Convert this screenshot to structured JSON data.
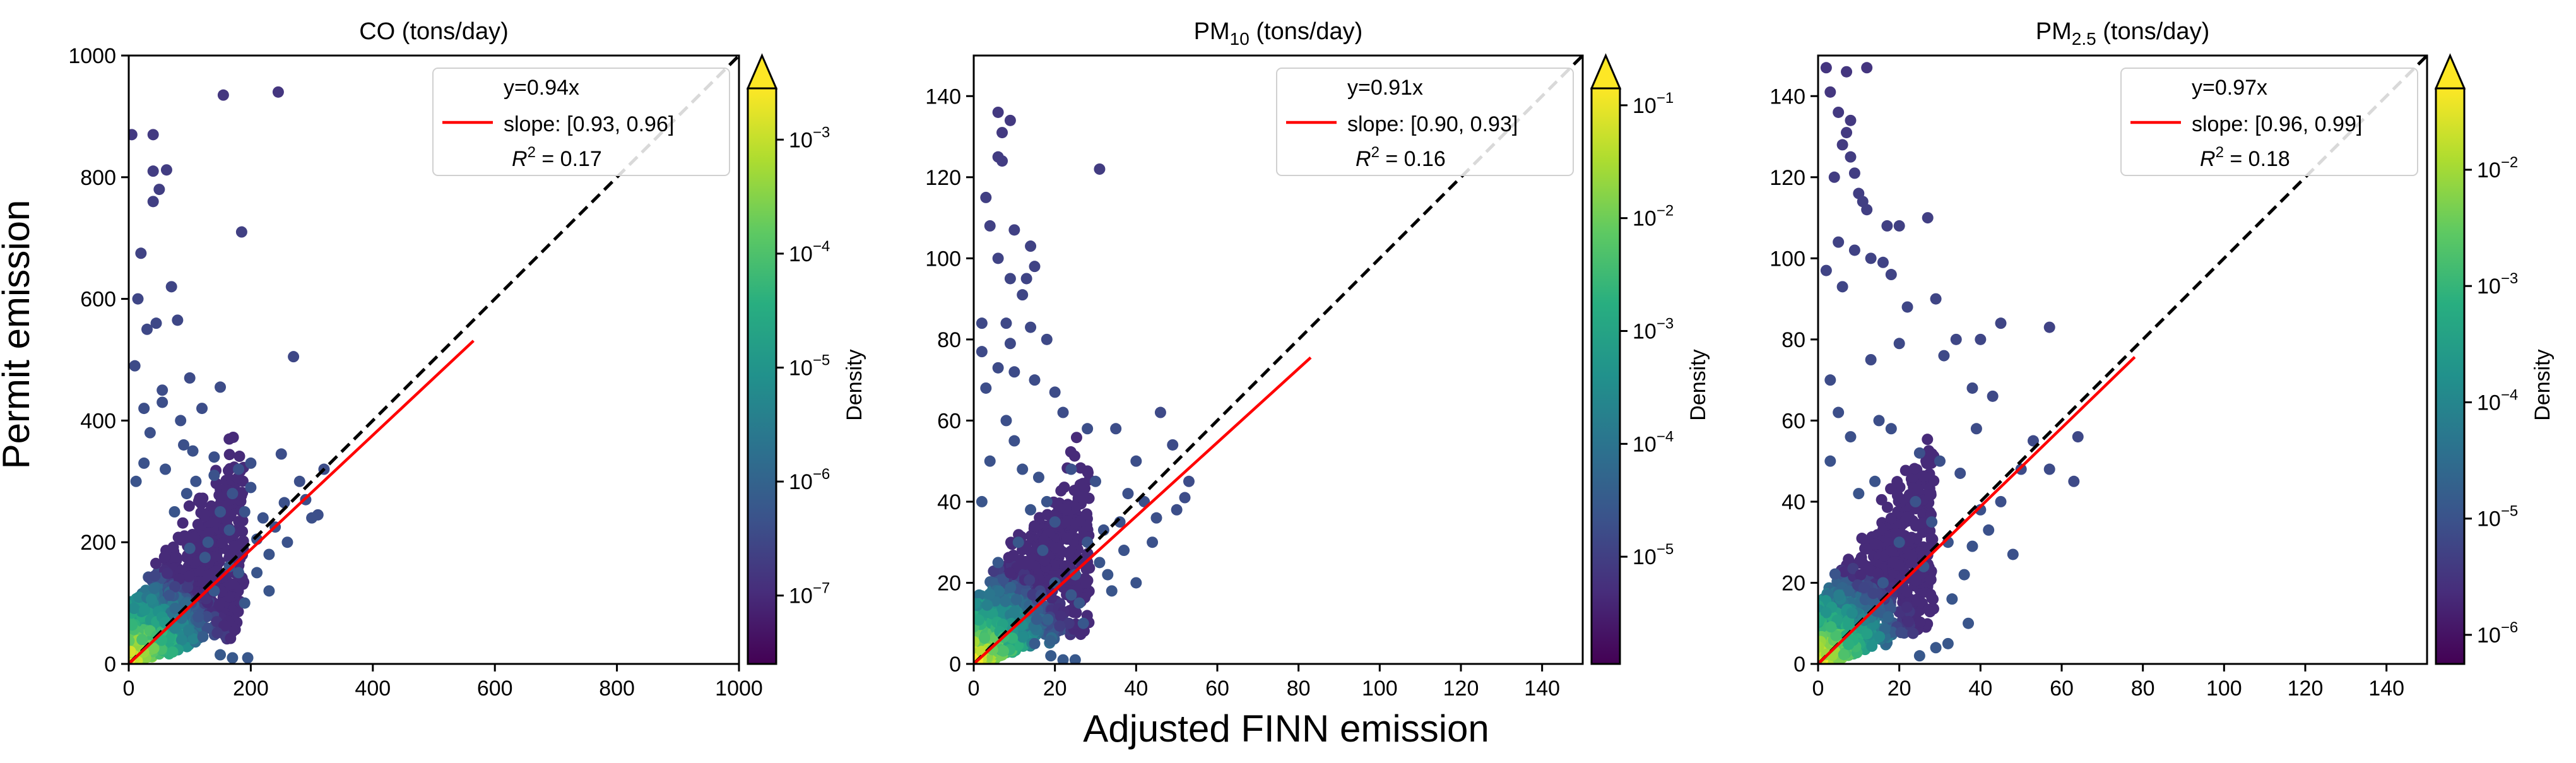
{
  "figure": {
    "ylabel": "Permit emission",
    "xlabel": "Adjusted FINN emission",
    "colorbar_label": "Density"
  },
  "chart_data": [
    {
      "type": "scatter",
      "title_main": "CO",
      "title_sub": "",
      "title_unit": " (tons/day)",
      "xlim": [
        0,
        1000
      ],
      "ylim": [
        0,
        1000
      ],
      "xticks": [
        "0",
        "200",
        "400",
        "600",
        "800",
        "1000"
      ],
      "yticks": [
        "0",
        "200",
        "400",
        "600",
        "800",
        "1000"
      ],
      "identity_line": "y=x",
      "fit": {
        "slope": 0.94,
        "x_end": 565,
        "label": "y=0.94x",
        "ci": "slope: [0.93, 0.96]",
        "r2": "0.17"
      },
      "colorbar": {
        "label": "Density",
        "exp_min": -7.6,
        "exp_max": -2.55,
        "tick_exps": [
          -7,
          -6,
          -5,
          -4,
          -3
        ]
      },
      "points": [
        [
          5,
          870
        ],
        [
          40,
          870
        ],
        [
          40,
          810
        ],
        [
          62,
          812
        ],
        [
          50,
          780
        ],
        [
          40,
          760
        ],
        [
          155,
          935
        ],
        [
          245,
          940
        ],
        [
          185,
          710
        ],
        [
          270,
          505
        ],
        [
          20,
          675
        ],
        [
          15,
          600
        ],
        [
          30,
          550
        ],
        [
          45,
          560
        ],
        [
          80,
          565
        ],
        [
          70,
          620
        ],
        [
          100,
          470
        ],
        [
          150,
          455
        ],
        [
          10,
          490
        ],
        [
          55,
          430
        ],
        [
          120,
          420
        ],
        [
          35,
          380
        ],
        [
          90,
          360
        ],
        [
          140,
          340
        ],
        [
          200,
          330
        ],
        [
          250,
          345
        ],
        [
          320,
          320
        ],
        [
          310,
          245
        ],
        [
          280,
          300
        ],
        [
          190,
          250
        ],
        [
          220,
          240
        ],
        [
          170,
          280
        ],
        [
          60,
          320
        ],
        [
          25,
          330
        ],
        [
          110,
          300
        ],
        [
          95,
          280
        ],
        [
          150,
          250
        ],
        [
          230,
          180
        ],
        [
          210,
          150
        ],
        [
          180,
          150
        ],
        [
          190,
          100
        ],
        [
          140,
          120
        ],
        [
          165,
          220
        ],
        [
          255,
          265
        ],
        [
          300,
          240
        ],
        [
          170,
          10
        ],
        [
          195,
          10
        ],
        [
          150,
          15
        ],
        [
          12,
          300
        ],
        [
          75,
          250
        ],
        [
          130,
          200
        ],
        [
          210,
          205
        ],
        [
          240,
          225
        ],
        [
          165,
          160
        ],
        [
          125,
          175
        ],
        [
          100,
          190
        ],
        [
          230,
          120
        ],
        [
          260,
          200
        ],
        [
          290,
          270
        ],
        [
          200,
          290
        ],
        [
          140,
          310
        ],
        [
          180,
          320
        ],
        [
          105,
          350
        ],
        [
          85,
          400
        ],
        [
          55,
          450
        ],
        [
          25,
          420
        ]
      ]
    },
    {
      "type": "scatter",
      "title_main": "PM",
      "title_sub": "10",
      "title_unit": " (tons/day)",
      "xlim": [
        0,
        150
      ],
      "ylim": [
        0,
        150
      ],
      "xticks": [
        "0",
        "20",
        "40",
        "60",
        "80",
        "100",
        "120",
        "140"
      ],
      "yticks": [
        "0",
        "20",
        "40",
        "60",
        "80",
        "100",
        "120",
        "140"
      ],
      "identity_line": "y=x",
      "fit": {
        "slope": 0.91,
        "x_end": 83,
        "label": "y=0.91x",
        "ci": "slope: [0.90, 0.93]",
        "r2": "0.16"
      },
      "colorbar": {
        "label": "Density",
        "exp_min": -5.95,
        "exp_max": -0.85,
        "tick_exps": [
          -5,
          -4,
          -3,
          -2,
          -1
        ]
      },
      "points": [
        [
          6,
          136
        ],
        [
          9,
          134
        ],
        [
          7,
          131
        ],
        [
          6,
          125
        ],
        [
          7,
          124
        ],
        [
          31,
          122
        ],
        [
          3,
          115
        ],
        [
          4,
          108
        ],
        [
          10,
          107
        ],
        [
          14,
          103
        ],
        [
          6,
          100
        ],
        [
          15,
          98
        ],
        [
          9,
          95
        ],
        [
          13,
          95
        ],
        [
          12,
          91
        ],
        [
          2,
          84
        ],
        [
          8,
          84
        ],
        [
          14,
          83
        ],
        [
          9,
          79
        ],
        [
          2,
          77
        ],
        [
          18,
          80
        ],
        [
          6,
          73
        ],
        [
          10,
          72
        ],
        [
          15,
          70
        ],
        [
          3,
          68
        ],
        [
          20,
          67
        ],
        [
          22,
          62
        ],
        [
          28,
          58
        ],
        [
          35,
          58
        ],
        [
          46,
          62
        ],
        [
          49,
          54
        ],
        [
          53,
          45
        ],
        [
          52,
          41
        ],
        [
          50,
          38
        ],
        [
          38,
          42
        ],
        [
          42,
          40
        ],
        [
          45,
          36
        ],
        [
          36,
          35
        ],
        [
          32,
          33
        ],
        [
          28,
          30
        ],
        [
          31,
          25
        ],
        [
          33,
          22
        ],
        [
          25,
          22
        ],
        [
          20,
          20
        ],
        [
          24,
          17
        ],
        [
          26,
          15
        ],
        [
          22,
          1
        ],
        [
          25,
          1
        ],
        [
          19,
          2
        ],
        [
          15,
          5
        ],
        [
          8,
          60
        ],
        [
          10,
          55
        ],
        [
          12,
          48
        ],
        [
          16,
          46
        ],
        [
          18,
          40
        ],
        [
          24,
          48
        ],
        [
          30,
          45
        ],
        [
          40,
          50
        ],
        [
          44,
          30
        ],
        [
          37,
          28
        ],
        [
          34,
          18
        ],
        [
          27,
          10
        ],
        [
          40,
          20
        ],
        [
          20,
          35
        ],
        [
          14,
          38
        ],
        [
          4,
          50
        ],
        [
          2,
          40
        ],
        [
          11,
          30
        ],
        [
          17,
          28
        ],
        [
          6,
          25
        ]
      ]
    },
    {
      "type": "scatter",
      "title_main": "PM",
      "title_sub": "2.5",
      "title_unit": " (tons/day)",
      "xlim": [
        0,
        150
      ],
      "ylim": [
        0,
        150
      ],
      "xticks": [
        "0",
        "20",
        "40",
        "60",
        "80",
        "100",
        "120",
        "140"
      ],
      "yticks": [
        "0",
        "20",
        "40",
        "60",
        "80",
        "100",
        "120",
        "140"
      ],
      "identity_line": "y=x",
      "fit": {
        "slope": 0.97,
        "x_end": 78,
        "label": "y=0.97x",
        "ci": "slope: [0.96, 0.99]",
        "r2": "0.18"
      },
      "colorbar": {
        "label": "Density",
        "exp_min": -6.25,
        "exp_max": -1.3,
        "tick_exps": [
          -6,
          -5,
          -4,
          -3,
          -2
        ]
      },
      "points": [
        [
          2,
          147
        ],
        [
          7,
          146
        ],
        [
          12,
          147
        ],
        [
          3,
          141
        ],
        [
          5,
          136
        ],
        [
          8,
          134
        ],
        [
          7,
          131
        ],
        [
          6,
          128
        ],
        [
          8,
          125
        ],
        [
          9,
          121
        ],
        [
          4,
          120
        ],
        [
          10,
          116
        ],
        [
          11,
          114
        ],
        [
          12,
          112
        ],
        [
          17,
          108
        ],
        [
          20,
          108
        ],
        [
          27,
          110
        ],
        [
          5,
          104
        ],
        [
          9,
          102
        ],
        [
          13,
          100
        ],
        [
          16,
          99
        ],
        [
          18,
          96
        ],
        [
          2,
          97
        ],
        [
          6,
          93
        ],
        [
          22,
          88
        ],
        [
          29,
          90
        ],
        [
          45,
          84
        ],
        [
          40,
          80
        ],
        [
          57,
          83
        ],
        [
          34,
          80
        ],
        [
          31,
          76
        ],
        [
          20,
          79
        ],
        [
          13,
          75
        ],
        [
          38,
          68
        ],
        [
          43,
          66
        ],
        [
          39,
          58
        ],
        [
          53,
          55
        ],
        [
          57,
          48
        ],
        [
          63,
          45
        ],
        [
          64,
          56
        ],
        [
          45,
          40
        ],
        [
          40,
          38
        ],
        [
          38,
          29
        ],
        [
          36,
          22
        ],
        [
          33,
          16
        ],
        [
          37,
          10
        ],
        [
          29,
          4
        ],
        [
          32,
          5
        ],
        [
          25,
          2
        ],
        [
          3,
          70
        ],
        [
          5,
          62
        ],
        [
          8,
          56
        ],
        [
          15,
          60
        ],
        [
          18,
          58
        ],
        [
          25,
          52
        ],
        [
          30,
          50
        ],
        [
          35,
          47
        ],
        [
          50,
          48
        ],
        [
          24,
          40
        ],
        [
          28,
          35
        ],
        [
          14,
          45
        ],
        [
          10,
          42
        ],
        [
          3,
          50
        ],
        [
          20,
          30
        ],
        [
          32,
          30
        ],
        [
          42,
          33
        ],
        [
          48,
          27
        ],
        [
          26,
          24
        ],
        [
          16,
          20
        ]
      ]
    }
  ]
}
